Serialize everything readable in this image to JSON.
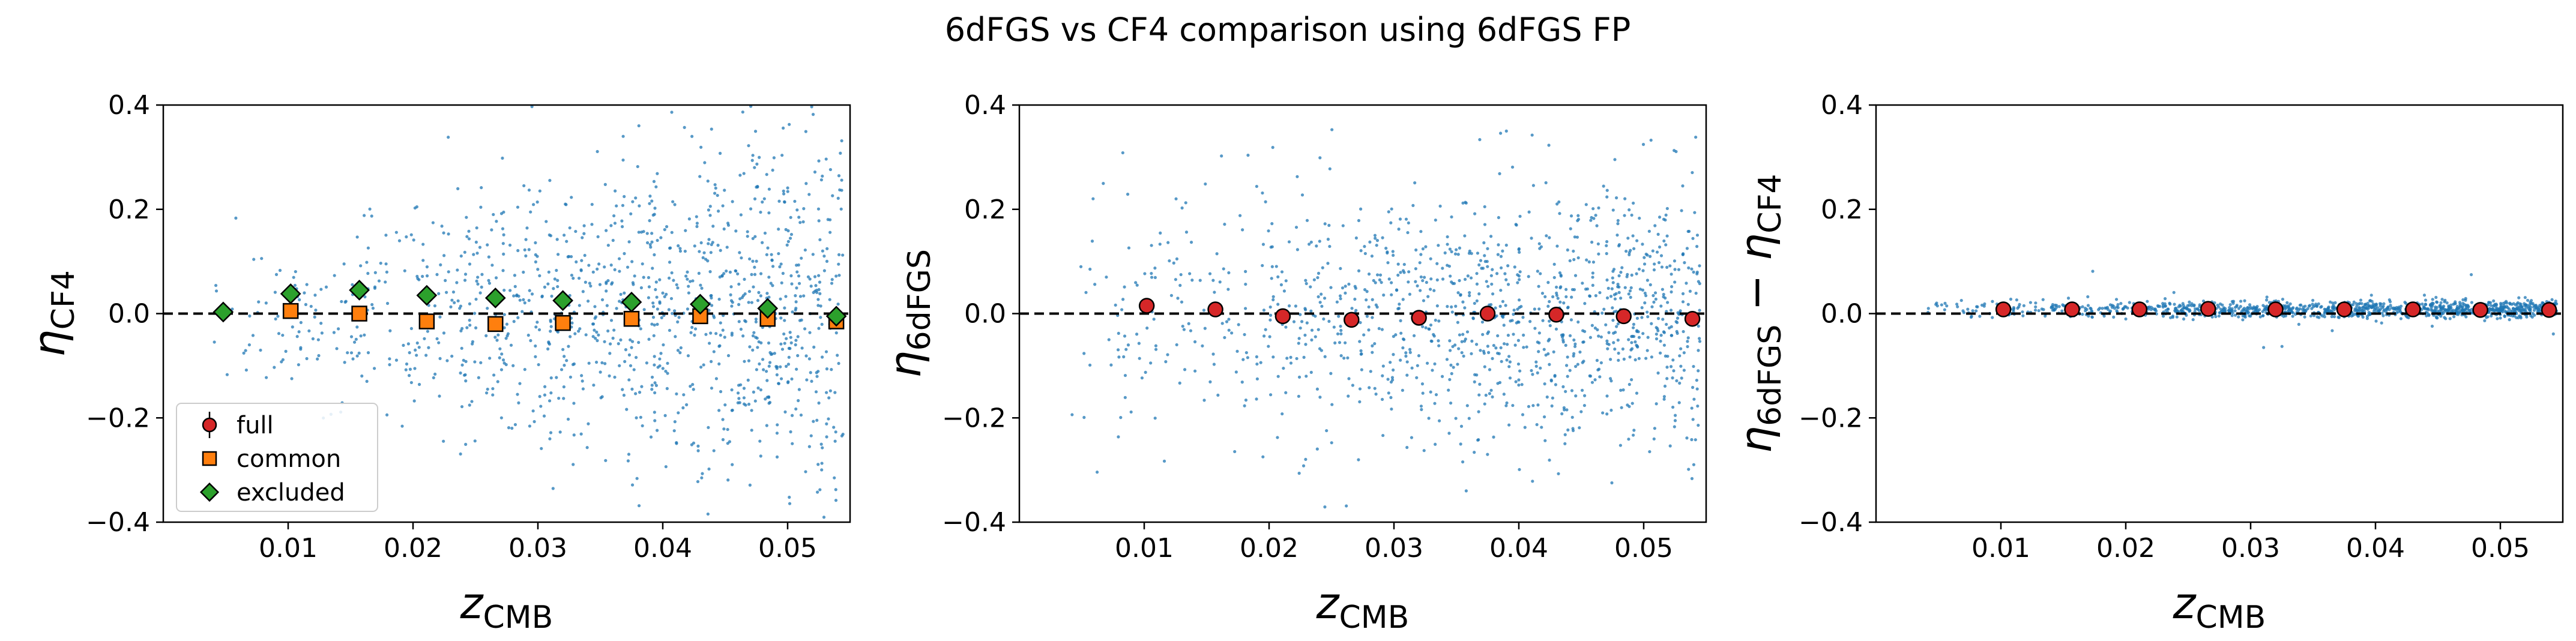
{
  "figure": {
    "title": "6dFGS vs CF4 comparison using 6dFGS FP"
  },
  "chart_data": [
    {
      "type": "scatter",
      "panel": "left",
      "xlabel": "z_CMB",
      "ylabel": "η_CF4",
      "xlim": [
        0.0,
        0.055
      ],
      "ylim": [
        -0.4,
        0.4
      ],
      "xticks": [
        "0.01",
        "0.02",
        "0.03",
        "0.04",
        "0.05"
      ],
      "yticks": [
        "−0.4",
        "−0.2",
        "0.0",
        "0.2",
        "0.4"
      ],
      "reference_line": {
        "y": 0.0,
        "style": "dashed",
        "color": "#000000"
      },
      "legend": {
        "position": "lower-left",
        "entries": [
          "full",
          "common",
          "excluded"
        ]
      },
      "scatter_points": {
        "count": 1200,
        "color": "#1f77b4",
        "y_spread": "grows with z: ~0.12 at z=0.01 to ~0.3 at z=0.05"
      },
      "series": [
        {
          "name": "full",
          "marker": "circle",
          "color": "#d62728",
          "x": [],
          "y": []
        },
        {
          "name": "common",
          "marker": "square",
          "color": "#ff7f0e",
          "x": [
            0.0102,
            0.0157,
            0.0211,
            0.0266,
            0.032,
            0.0375,
            0.043,
            0.0484,
            0.0539
          ],
          "y": [
            0.005,
            0.0,
            -0.015,
            -0.02,
            -0.018,
            -0.01,
            -0.005,
            -0.01,
            -0.015
          ]
        },
        {
          "name": "excluded",
          "marker": "diamond",
          "color": "#2ca02c",
          "x": [
            0.0048,
            0.0102,
            0.0157,
            0.0211,
            0.0266,
            0.032,
            0.0375,
            0.043,
            0.0484,
            0.0539
          ],
          "y": [
            0.003,
            0.038,
            0.045,
            0.035,
            0.03,
            0.025,
            0.022,
            0.018,
            0.01,
            -0.005
          ]
        }
      ]
    },
    {
      "type": "scatter",
      "panel": "middle",
      "xlabel": "z_CMB",
      "ylabel": "η_6dFGS",
      "xlim": [
        0.0,
        0.055
      ],
      "ylim": [
        -0.4,
        0.4
      ],
      "xticks": [
        "0.01",
        "0.02",
        "0.03",
        "0.04",
        "0.05"
      ],
      "yticks": [
        "−0.4",
        "−0.2",
        "0.0",
        "0.2",
        "0.4"
      ],
      "reference_line": {
        "y": 0.0,
        "style": "dashed",
        "color": "#000000"
      },
      "scatter_points": {
        "count": 1200,
        "color": "#1f77b4",
        "y_spread": "~0.12 across z"
      },
      "series": [
        {
          "name": "full",
          "marker": "circle",
          "color": "#d62728",
          "x": [
            0.0102,
            0.0157,
            0.0211,
            0.0266,
            0.032,
            0.0375,
            0.043,
            0.0484,
            0.0539
          ],
          "y": [
            0.015,
            0.008,
            -0.005,
            -0.012,
            -0.008,
            0.0,
            -0.002,
            -0.005,
            -0.01
          ]
        }
      ]
    },
    {
      "type": "scatter",
      "panel": "right",
      "xlabel": "z_CMB",
      "ylabel": "η_6dFGS − η_CF4",
      "xlim": [
        0.0,
        0.055
      ],
      "ylim": [
        -0.4,
        0.4
      ],
      "xticks": [
        "0.01",
        "0.02",
        "0.03",
        "0.04",
        "0.05"
      ],
      "yticks": [
        "−0.4",
        "−0.2",
        "0.0",
        "0.2",
        "0.4"
      ],
      "reference_line": {
        "y": 0.0,
        "style": "dashed",
        "color": "#000000"
      },
      "scatter_points": {
        "count": 1200,
        "color": "#1f77b4",
        "y_spread": "~0.01 across z, few outliers to 0.17"
      },
      "series": [
        {
          "name": "full",
          "marker": "circle",
          "color": "#d62728",
          "x": [
            0.0102,
            0.0157,
            0.0211,
            0.0266,
            0.032,
            0.0375,
            0.043,
            0.0484,
            0.0539
          ],
          "y": [
            0.008,
            0.008,
            0.008,
            0.009,
            0.008,
            0.008,
            0.008,
            0.007,
            0.007
          ]
        }
      ]
    }
  ]
}
